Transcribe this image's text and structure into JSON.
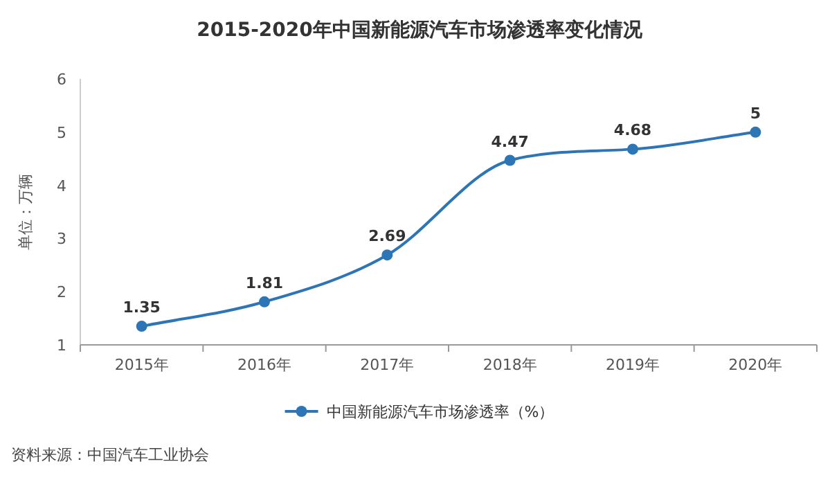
{
  "chart_data": {
    "type": "line",
    "title": "2015-2020年中国新能源汽车市场渗透率变化情况",
    "ylabel": "单位：万辆",
    "categories": [
      "2015年",
      "2016年",
      "2017年",
      "2018年",
      "2019年",
      "2020年"
    ],
    "series": [
      {
        "name": "中国新能源汽车市场渗透率（%）",
        "color": "#2e75b6",
        "values": [
          1.35,
          1.81,
          2.69,
          4.47,
          4.68,
          5
        ]
      }
    ],
    "ylim": [
      1,
      6
    ],
    "yticks": [
      1,
      2,
      3,
      4,
      5,
      6
    ],
    "data_labels": true,
    "marker": "circle",
    "line_style": "solid",
    "legend": "bottom",
    "grid": false,
    "annotations": [
      "资料来源：中国汽车工业协会"
    ]
  }
}
